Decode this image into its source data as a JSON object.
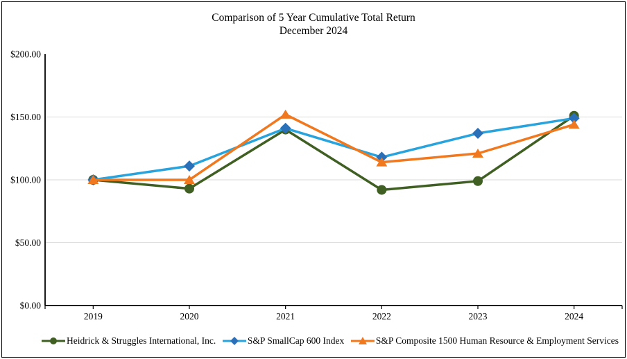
{
  "title": {
    "line1": "Comparison of 5 Year Cumulative Total Return",
    "line2": "December 2024"
  },
  "chart_data": {
    "type": "line",
    "title": "Comparison of 5 Year Cumulative Total Return",
    "subtitle": "December 2024",
    "xlabel": "",
    "ylabel": "",
    "categories": [
      "2019",
      "2020",
      "2021",
      "2022",
      "2023",
      "2024"
    ],
    "ylim": [
      0,
      200
    ],
    "ytick_step": 50,
    "ytick_labels": [
      "$0.00",
      "$50.00",
      "$100.00",
      "$150.00",
      "$200.00"
    ],
    "grid": true,
    "gridline_color": "#d9d9d9",
    "axis_color": "#000000",
    "legend_position": "bottom",
    "series": [
      {
        "name": "Heidrick & Struggles International, Inc.",
        "marker": "circle",
        "line_color": "#3f5f23",
        "marker_color": "#3f5f23",
        "values": [
          100,
          93,
          140,
          92,
          99,
          151
        ]
      },
      {
        "name": "S&P SmallCap 600 Index",
        "marker": "diamond",
        "line_color": "#29a3dc",
        "marker_color": "#2a70b8",
        "values": [
          100,
          111,
          141,
          118,
          137,
          149
        ]
      },
      {
        "name": "S&P Composite 1500 Human Resource & Employment Services",
        "marker": "triangle",
        "line_color": "#f0781e",
        "marker_color": "#f0781e",
        "values": [
          100,
          100,
          152,
          114,
          121,
          144
        ]
      }
    ]
  }
}
